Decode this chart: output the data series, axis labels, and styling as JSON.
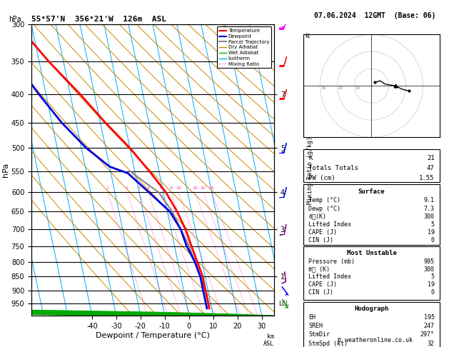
{
  "title_left": "55°57'N  356°21'W  126m  ASL",
  "title_right": "07.06.2024  12GMT  (Base: 06)",
  "xlabel": "Dewpoint / Temperature (°C)",
  "ylabel_left": "hPa",
  "pressure_labels": [
    300,
    350,
    400,
    450,
    500,
    550,
    600,
    650,
    700,
    750,
    800,
    850,
    900,
    950
  ],
  "pressure_levels": [
    300,
    350,
    400,
    450,
    500,
    550,
    600,
    650,
    700,
    750,
    800,
    850,
    900,
    950,
    1000
  ],
  "km_pressure": [
    400,
    500,
    600,
    700,
    850
  ],
  "km_labels": [
    "7",
    "5",
    "4",
    "3",
    "1"
  ],
  "xlim_temp": [
    -40,
    35
  ],
  "pmin": 300,
  "pmax": 1000,
  "skew_factor": 25,
  "isotherm_color": "#00aaff",
  "dry_adiabat_color": "#cc8800",
  "wet_adiabat_color": "#00aa00",
  "mixing_ratio_color": "#ff44aa",
  "temp_color": "#ff0000",
  "dewp_color": "#0000dd",
  "parcel_color": "#888888",
  "temp_profile_p": [
    300,
    350,
    400,
    450,
    500,
    550,
    600,
    650,
    700,
    750,
    800,
    850,
    900,
    950,
    970
  ],
  "temp_profile_t": [
    -46,
    -36,
    -26,
    -18,
    -10,
    -4,
    1,
    4,
    6,
    7,
    8,
    9,
    9,
    9,
    9
  ],
  "dewp_profile_p": [
    300,
    350,
    400,
    450,
    500,
    540,
    555,
    600,
    650,
    700,
    750,
    800,
    850,
    900,
    950,
    970
  ],
  "dewp_profile_t": [
    -58,
    -50,
    -43,
    -36,
    -28,
    -20,
    -13,
    -6,
    1,
    4,
    5,
    7,
    8,
    8,
    8,
    8
  ],
  "parcel_profile_p": [
    550,
    560,
    580,
    600,
    650,
    700,
    750,
    800,
    850,
    900,
    950,
    970
  ],
  "parcel_profile_t": [
    -12,
    -10,
    -6,
    -2,
    2,
    4,
    6,
    7,
    8,
    9,
    9,
    9
  ],
  "mr_values": [
    1,
    2,
    3,
    4,
    6,
    8,
    10,
    16,
    20,
    25
  ],
  "mr_label_p": 600,
  "stats_K": 21,
  "stats_TT": 47,
  "stats_PW": "1.55",
  "surface_temp": "9.1",
  "surface_dewp": "7.3",
  "surface_theta_e": 300,
  "surface_LI": 5,
  "surface_CAPE": 19,
  "surface_CIN": 0,
  "mu_pressure": 995,
  "mu_theta_e": 300,
  "mu_LI": 5,
  "mu_CAPE": 19,
  "mu_CIN": 0,
  "hodo_EH": 195,
  "hodo_SREH": 247,
  "hodo_StmDir": "297°",
  "hodo_StmSpd": 32,
  "copyright": "© weatheronline.co.uk",
  "wind_barbs": [
    {
      "p": 950,
      "color": "#00aa00",
      "u": -2,
      "v": 3
    },
    {
      "p": 900,
      "color": "#0000ff",
      "u": -3,
      "v": 4
    },
    {
      "p": 850,
      "color": "#880088",
      "u": -1,
      "v": 8
    },
    {
      "p": 700,
      "color": "#880088",
      "u": 2,
      "v": 10
    },
    {
      "p": 600,
      "color": "#0000ff",
      "u": 3,
      "v": 12
    },
    {
      "p": 500,
      "color": "#0000ff",
      "u": 4,
      "v": 15
    },
    {
      "p": 400,
      "color": "#ff0000",
      "u": 5,
      "v": 18
    },
    {
      "p": 350,
      "color": "#ff0000",
      "u": 6,
      "v": 20
    },
    {
      "p": 300,
      "color": "#ff00ff",
      "u": 8,
      "v": 22
    }
  ]
}
